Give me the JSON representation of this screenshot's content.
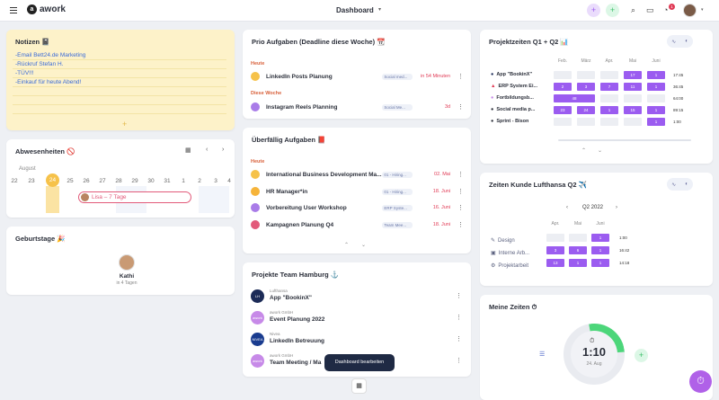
{
  "topbar": {
    "logo": "awork",
    "title": "Dashboard",
    "badge_count": "1"
  },
  "notes": {
    "title": "Notizen 📓",
    "lines": [
      "-Email Bett24.de Marketing",
      "-Rückruf Stefan H.",
      "-TÜV!!!",
      "-Einkauf für heute Abend!"
    ]
  },
  "absences": {
    "title": "Abwesenheiten 🚫",
    "month": "August",
    "days": [
      "22",
      "23",
      "24",
      "25",
      "26",
      "27",
      "28",
      "29",
      "30",
      "31",
      "1",
      "2",
      "3",
      "4"
    ],
    "today": "24",
    "entry": "Lisa – 7 Tage"
  },
  "birthdays": {
    "title": "Geburtstage 🎉",
    "name": "Kathi",
    "sub": "in 4 Tagen"
  },
  "prio": {
    "title": "Prio Aufgaben (Deadline diese Woche) 📆",
    "sections": [
      "Heute",
      "Diese Woche"
    ],
    "tasks": [
      {
        "title": "LinkedIn Posts Planung",
        "tag": "Social med...",
        "due": "in 54 Minuten",
        "color": "#f6c24a"
      },
      {
        "title": "Instagram Reels Planning",
        "tag": "Social Me...",
        "due": "3d",
        "color": "#a97ce8"
      }
    ]
  },
  "overdue": {
    "title": "Überfällig Aufgaben 📕",
    "section": "Heute",
    "tasks": [
      {
        "title": "International Business Development Ma...",
        "tag": "01 - Hiring...",
        "due": "02. Mai",
        "color": "#f6c24a"
      },
      {
        "title": "HR Manager*in",
        "tag": "01 - Hiring...",
        "due": "18. Juni",
        "color": "#f6b43a"
      },
      {
        "title": "Vorbereitung User Workshop",
        "tag": "ERP Syste...",
        "due": "16. Juni",
        "color": "#a97ce8"
      },
      {
        "title": "Kampagnen Planung Q4",
        "tag": "Team Mee...",
        "due": "18. Juni",
        "color": "#e25a7a"
      }
    ]
  },
  "projects": {
    "title": "Projekte Team Hamburg ⚓",
    "items": [
      {
        "company": "Lufthansa",
        "name": "App \"BookinX\"",
        "color": "#1c2b57",
        "logo": "LH"
      },
      {
        "company": "awork GmbH",
        "name": "Event Planung 2022",
        "color": "#c78ae8",
        "logo": "awork"
      },
      {
        "company": "Nivea",
        "name": "LinkedIn Betreuung",
        "color": "#1a3c8f",
        "logo": "NIVEA"
      },
      {
        "company": "awork GmbH",
        "name": "Team Meeting / Ma",
        "color": "#c78ae8",
        "logo": "awork"
      }
    ],
    "tooltip": "Dashboard bearbeiten"
  },
  "projektzeiten": {
    "title": "Projektzeiten Q1 + Q2 📊",
    "months": [
      "Feb.",
      "März",
      "Apr.",
      "Mai",
      "Juni"
    ],
    "rows": [
      {
        "label": "App \"BookinX\"",
        "cells": [
          "",
          "",
          "",
          "17",
          "1"
        ],
        "total": "17:45"
      },
      {
        "label": "ERP System Ei...",
        "cells": [
          "2",
          "3",
          "7",
          "11",
          "1"
        ],
        "total": "36:45"
      },
      {
        "label": "Fortbildungsb...",
        "cells": [
          "48",
          "",
          "",
          "",
          ""
        ],
        "total": "64:00"
      },
      {
        "label": "Social media p...",
        "cells": [
          "23",
          "24",
          "1",
          "15",
          "1"
        ],
        "total": "89:15"
      },
      {
        "label": "Sprint - Bison",
        "cells": [
          "",
          "",
          "",
          "",
          "1"
        ],
        "total": "1:00"
      }
    ]
  },
  "lufthansa": {
    "title": "Zeiten Kunde Lufthansa Q2 ✈️",
    "period": "Q2 2022",
    "months": [
      "Apr.",
      "Mai",
      "Juni"
    ],
    "rows": [
      {
        "label": "Design",
        "cells": [
          "",
          "",
          "1"
        ],
        "total": "1:00"
      },
      {
        "label": "Interne Arb...",
        "cells": [
          "3",
          "6",
          "1"
        ],
        "total": "16:42"
      },
      {
        "label": "Projektarbeit",
        "cells": [
          "13",
          "1",
          "1"
        ],
        "total": "14:18"
      }
    ]
  },
  "meine_zeiten": {
    "title": "Meine Zeiten ⏱",
    "time": "1:10",
    "date": "24. Aug",
    "progress": 0.18
  },
  "colors": {
    "accent": "#9b5cf0",
    "danger": "#e03a55",
    "today": "#f6c24a",
    "notes_bg": "#fdf2c9"
  }
}
